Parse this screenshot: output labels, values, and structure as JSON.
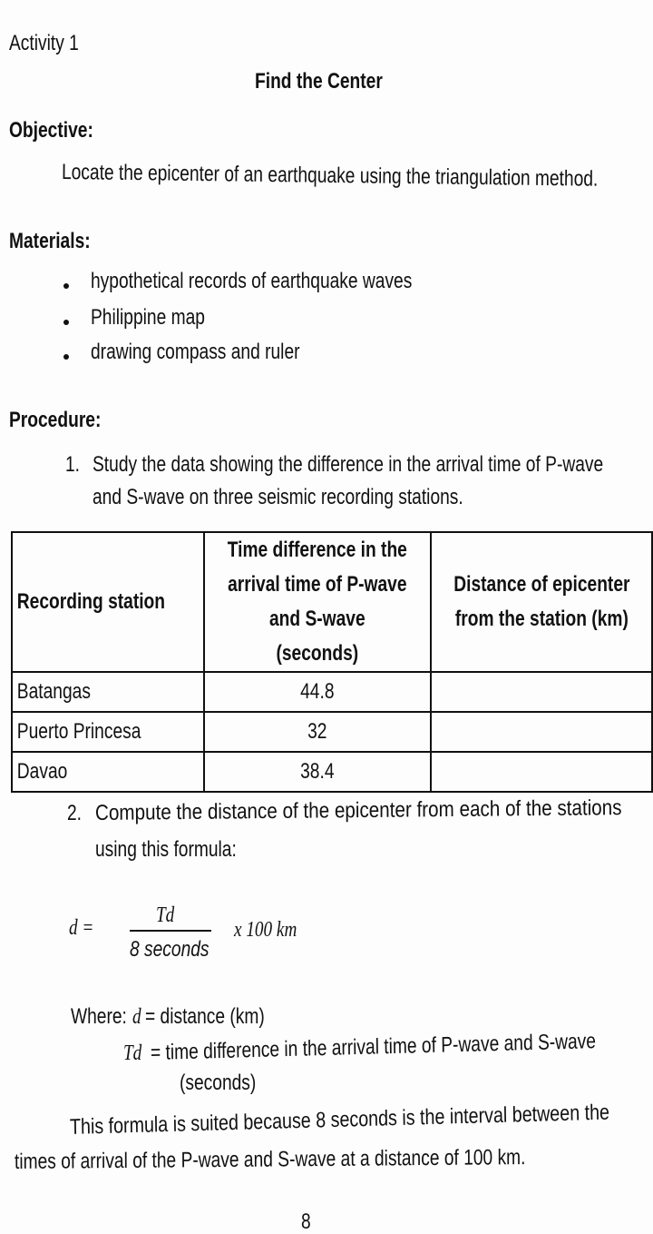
{
  "activity": "Activity 1",
  "title": "Find the Center",
  "objective": {
    "heading": "Objective:",
    "text": "Locate the epicenter of an earthquake using the triangulation method."
  },
  "materials": {
    "heading": "Materials:",
    "items": [
      "hypothetical records of earthquake waves",
      "Philippine map",
      "drawing compass and ruler"
    ]
  },
  "procedure": {
    "heading": "Procedure:",
    "step1": {
      "number": "1.",
      "line1": "Study the data showing the difference in the arrival time of P-wave",
      "line2": "and S-wave on three seismic recording stations."
    },
    "step2": {
      "number": "2.",
      "line1": "Compute the distance of the epicenter from each of the stations",
      "line2": "using this formula:"
    }
  },
  "table": {
    "headers": [
      "Recording station",
      [
        "Time difference in the",
        "arrival time of P-wave",
        "and S-wave",
        "(seconds)"
      ],
      [
        "Distance of epicenter",
        "from the station (km)"
      ]
    ],
    "rows": [
      [
        "Batangas",
        "44.8",
        ""
      ],
      [
        "Puerto Princesa",
        "32",
        ""
      ],
      [
        "Davao",
        "38.4",
        ""
      ]
    ]
  },
  "formula": {
    "lhs": "d =",
    "numerator": "Td",
    "denominator": "8 seconds",
    "multiplier": "x  100 km"
  },
  "where": {
    "label": "Where:",
    "d_var": "d",
    "d_def": "= distance (km)",
    "td_var": "Td",
    "td_def": "= time difference in the arrival time of P-wave and S-wave",
    "td_def2": "(seconds)"
  },
  "explanation": {
    "line1": "This formula is suited because 8 seconds is the interval between the",
    "line2": "times of arrival of the P-wave and S-wave at a distance of 100 km."
  },
  "page_number": "8"
}
